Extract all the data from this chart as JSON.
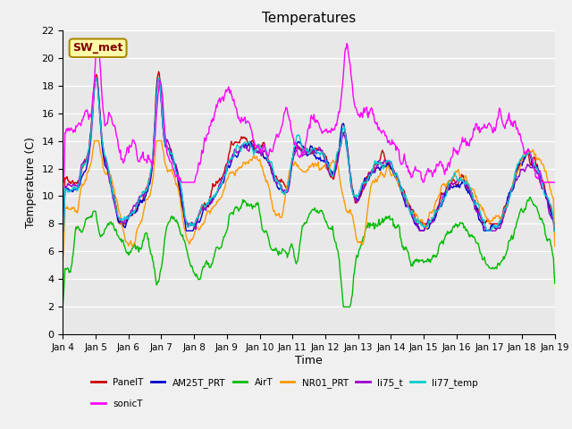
{
  "title": "Temperatures",
  "xlabel": "Time",
  "ylabel": "Temperature (C)",
  "ylim": [
    0,
    22
  ],
  "yticks": [
    0,
    2,
    4,
    6,
    8,
    10,
    12,
    14,
    16,
    18,
    20,
    22
  ],
  "x_labels": [
    "Jan 4",
    "Jan 5",
    "Jan 6",
    "Jan 7",
    "Jan 8",
    "Jan 9",
    "Jan 10",
    "Jan 11",
    "Jan 12",
    "Jan 13",
    "Jan 14",
    "Jan 15",
    "Jan 16",
    "Jan 17",
    "Jan 18",
    "Jan 19"
  ],
  "series": {
    "PanelT": {
      "color": "#cc0000",
      "lw": 1.0
    },
    "AM25T_PRT": {
      "color": "#0000cc",
      "lw": 1.0
    },
    "AirT": {
      "color": "#00bb00",
      "lw": 1.0
    },
    "NR01_PRT": {
      "color": "#ff9900",
      "lw": 1.0
    },
    "li75_t": {
      "color": "#9900cc",
      "lw": 1.0
    },
    "li77_temp": {
      "color": "#00cccc",
      "lw": 1.0
    },
    "sonicT": {
      "color": "#ff00ff",
      "lw": 1.0
    }
  },
  "legend_entries": [
    "PanelT",
    "AM25T_PRT",
    "AirT",
    "NR01_PRT",
    "li75_t",
    "li77_temp",
    "sonicT"
  ],
  "annotation_text": "SW_met",
  "bg_color": "#e8e8e8"
}
